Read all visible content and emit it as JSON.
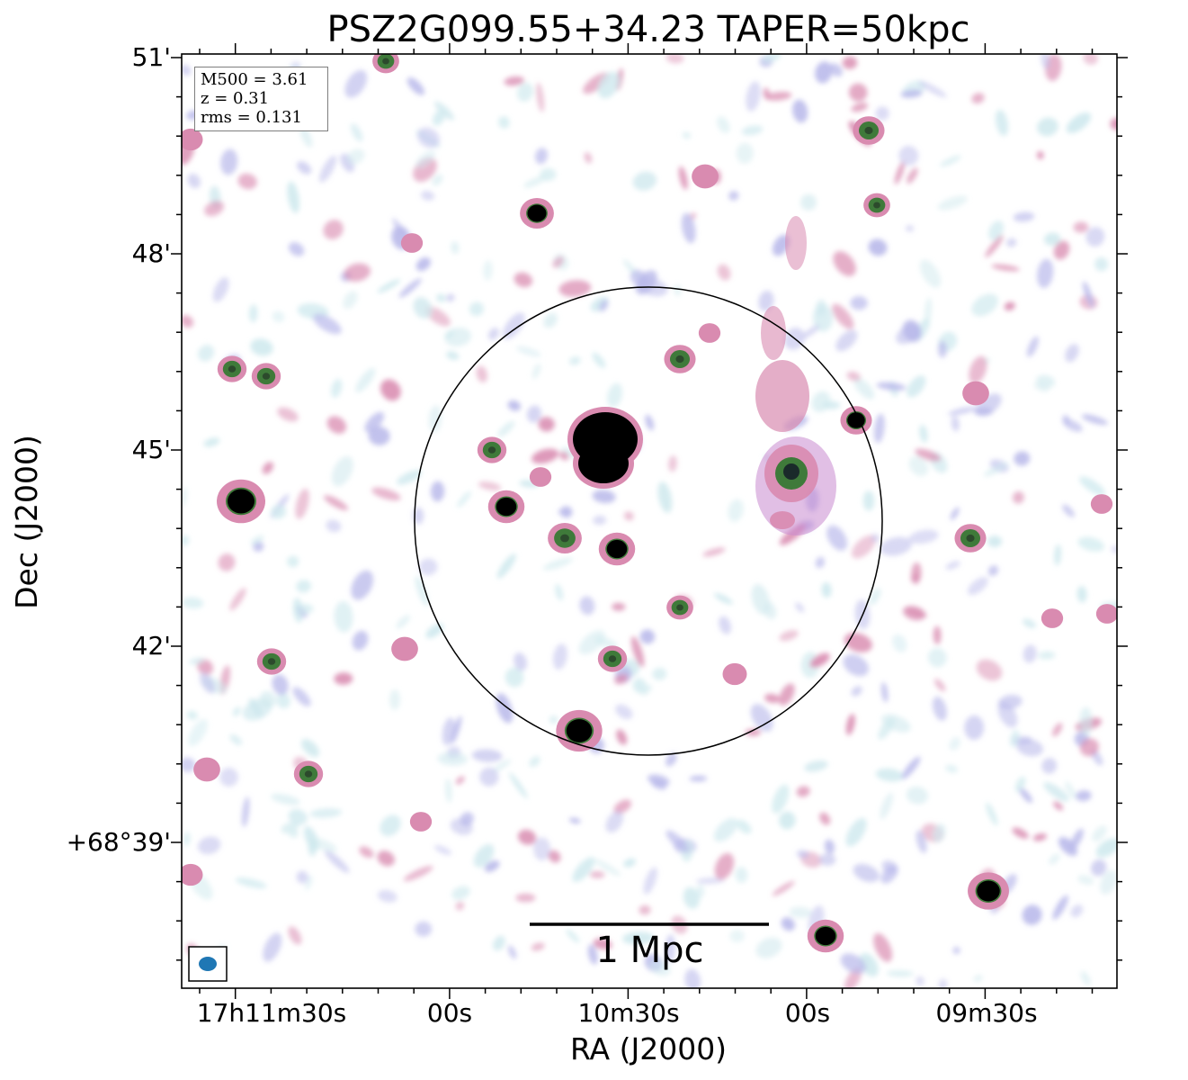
{
  "figure": {
    "title": "PSZ2G099.55+34.23 TAPER=50kpc",
    "xlabel": "RA (J2000)",
    "ylabel": "Dec (J2000)",
    "x_ticks": [
      "17h11m30s",
      "00s",
      "10m30s",
      "00s",
      "09m30s"
    ],
    "y_ticks": [
      "51'",
      "48'",
      "45'",
      "42'",
      "+68°39'"
    ],
    "info": {
      "m500": "M500 = 3.61",
      "z": "z = 0.31",
      "rms": "rms = 0.131"
    },
    "scalebar_label": "1 Mpc",
    "colors": {
      "background": "#ffffff",
      "noise_light": "#cfe9ee",
      "noise_purple": "#b8b8ea",
      "emission_pink": "#d98bb0",
      "emission_green": "#3f7a3a",
      "peak": "#000000",
      "beam": "#1f77b4",
      "circle": "#000000"
    },
    "icons": [
      "beam-ellipse-icon"
    ]
  }
}
